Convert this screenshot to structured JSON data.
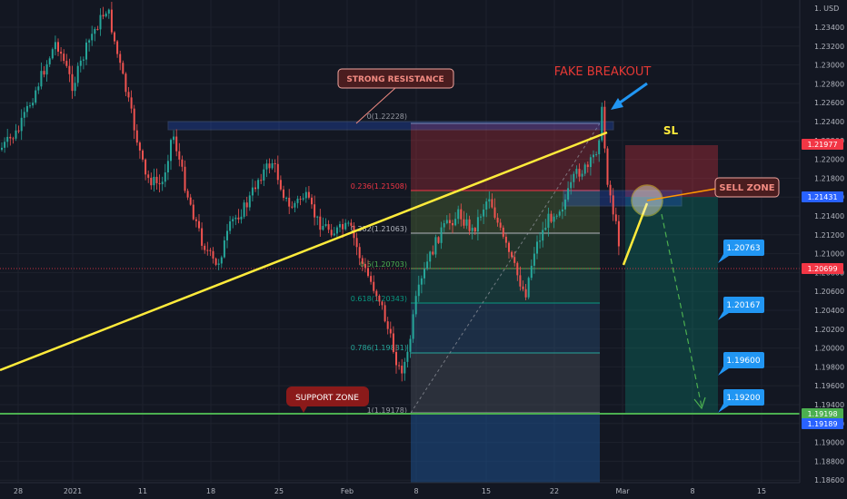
{
  "chart_data": {
    "type": "candlestick",
    "currency_label": "1. USD",
    "y_ticks": [
      "1.23400",
      "1.23200",
      "1.23000",
      "1.22800",
      "1.22600",
      "1.22400",
      "1.22200",
      "1.22000",
      "1.21800",
      "1.21600",
      "1.21400",
      "1.21200",
      "1.21000",
      "1.20800",
      "1.20600",
      "1.20400",
      "1.20200",
      "1.20000",
      "1.19800",
      "1.19600",
      "1.19400",
      "1.19200",
      "1.19000",
      "1.18800",
      "1.18600"
    ],
    "x_ticks": [
      "28",
      "2021",
      "11",
      "18",
      "25",
      "Feb",
      "8",
      "15",
      "22",
      "Mar",
      "8",
      "15"
    ],
    "price_tags": [
      {
        "value": "1.21977",
        "color": "#f23645"
      },
      {
        "value": "1.21431",
        "color": "#2962ff"
      },
      {
        "value": "1.20699",
        "color": "#f23645"
      },
      {
        "value": "1.19198",
        "color": "#4caf50"
      },
      {
        "value": "1.19189",
        "color": "#2962ff"
      }
    ],
    "fib_levels": [
      {
        "label": "0(1.22228)",
        "color": "#9598a1"
      },
      {
        "label": "0.236(1.21508)",
        "color": "#f23645"
      },
      {
        "label": "0.382(1.21063)",
        "color": "#b2b5be"
      },
      {
        "label": "0.5(1.20703)",
        "color": "#4caf50"
      },
      {
        "label": "0.618(1.20343)",
        "color": "#089981"
      },
      {
        "label": "0.786(1.19831)",
        "color": "#26a69a"
      },
      {
        "label": "1(1.19178)",
        "color": "#9598a1"
      }
    ],
    "annotations": {
      "strong_resistance": "STRONG RESISTANCE",
      "fake_breakout": "FAKE BREAKOUT",
      "sl": "SL",
      "sell_zone": "SELL ZONE",
      "support_zone": "SUPPORT ZONE"
    },
    "targets": [
      "1.20763",
      "1.20167",
      "1.19600",
      "1.19200"
    ],
    "colors": {
      "up": "#26a69a",
      "down": "#ef5350",
      "trendline": "#ffeb3b",
      "support": "#4caf50"
    }
  }
}
